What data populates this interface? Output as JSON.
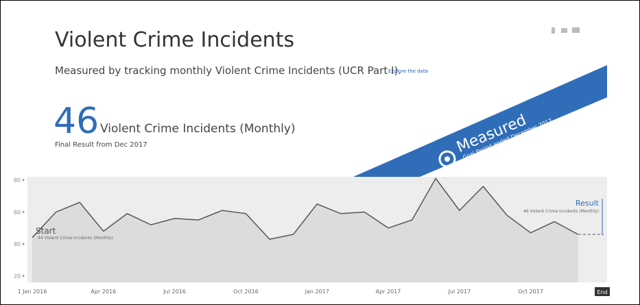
{
  "header": {
    "title": "Violent Crime Incidents",
    "subtitle": "Measured by tracking monthly Violent Crime Incidents (UCR Part I).",
    "link": "Explore the data"
  },
  "result": {
    "value": 46,
    "unit": "Violent Crime Incidents (Monthly)",
    "note": "Final Result from Dec 2017"
  },
  "banner": {
    "status": "Measured",
    "period": "Goal Period ended December 2017"
  },
  "chart_data": {
    "type": "line",
    "categories": [
      "1 Jan 2016",
      null,
      null,
      "Apr 2016",
      null,
      null,
      "Jul 2016",
      null,
      null,
      "Oct 2016",
      null,
      null,
      "Jan 2017",
      null,
      null,
      "Apr 2017",
      null,
      null,
      "Jul 2017",
      null,
      null,
      "Oct 2017",
      null,
      null
    ],
    "series": [
      {
        "name": "Violent Crime Incidents",
        "color": "#555555",
        "values": [
          44,
          60,
          66,
          48,
          59,
          52,
          56,
          55,
          61,
          59,
          43,
          46,
          65,
          59,
          60,
          50,
          55,
          81,
          61,
          76,
          58,
          47,
          54,
          46
        ]
      }
    ],
    "ylim": [
      16,
      82
    ],
    "yticks": [
      20,
      40,
      60,
      80
    ],
    "annotations": {
      "start": "Start",
      "start_note": "44 Violent Crime Incidents (Monthly)",
      "result": "Result",
      "result_note": "46 Violent Crime Incidents (Monthly)",
      "end": "End"
    }
  }
}
